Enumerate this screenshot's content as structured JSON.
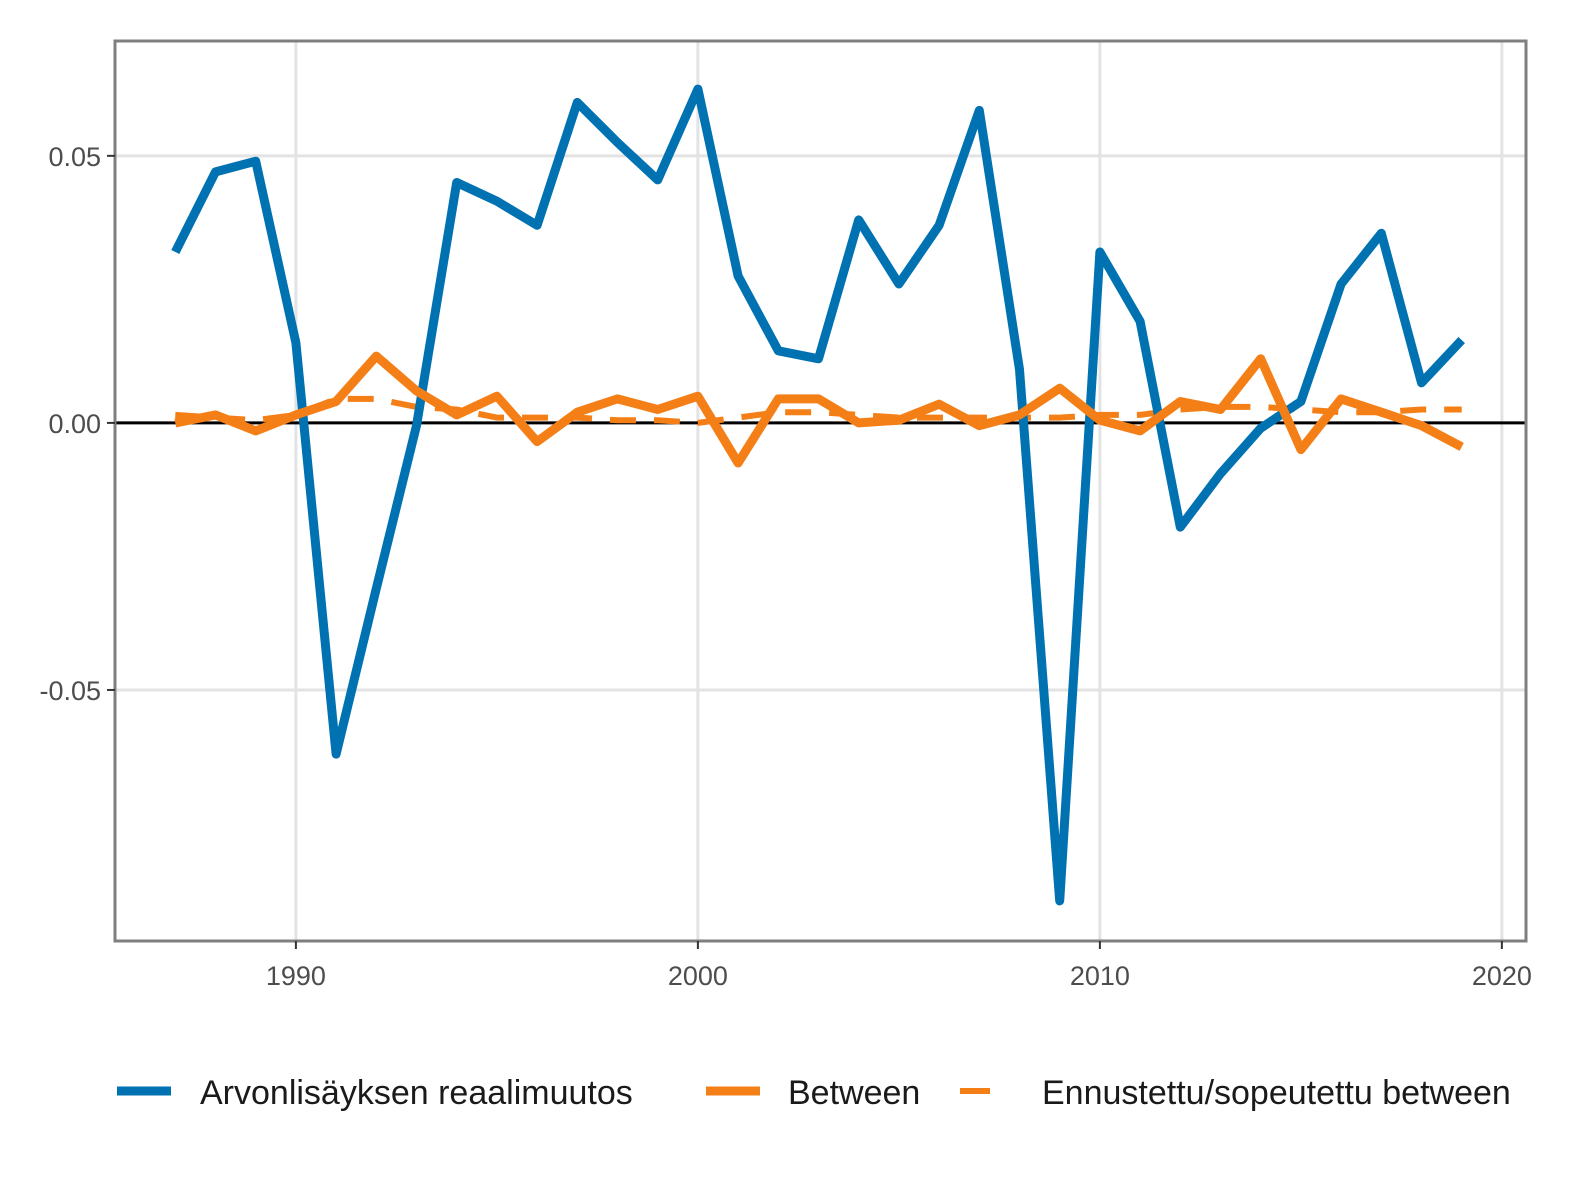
{
  "chart_data": {
    "type": "line",
    "title": "",
    "xlabel": "",
    "ylabel": "",
    "xlim": [
      1985.5,
      2020.6
    ],
    "ylim": [
      -0.097,
      0.0715
    ],
    "x_ticks": [
      1990,
      2000,
      2010,
      2020
    ],
    "x_tick_labels": [
      "1990",
      "2000",
      "2010",
      "2020"
    ],
    "y_ticks": [
      -0.05,
      0.0,
      0.05
    ],
    "y_tick_labels": [
      "-0.05",
      "0.00",
      "0.05"
    ],
    "grid": true,
    "reference_line_y": 0,
    "legend_position": "bottom",
    "colors": {
      "blue": "#0072B2",
      "orange": "#F57F17",
      "panel_border": "#7f7f7f",
      "grid": "#e3e3e3"
    },
    "series": [
      {
        "name": "Arvonlisäyksen reaalimuutos",
        "color": "#0072B2",
        "dash": "solid",
        "x": [
          1987,
          1988,
          1989,
          1990,
          1991,
          1992,
          1993,
          1994,
          1995,
          1996,
          1997,
          1998,
          1999,
          2000,
          2001,
          2002,
          2003,
          2004,
          2005,
          2006,
          2007,
          2008,
          2009,
          2010,
          2011,
          2012,
          2013,
          2014,
          2015,
          2016,
          2017,
          2018,
          2019
        ],
        "values": [
          0.032,
          0.047,
          0.049,
          0.015,
          -0.062,
          -0.031,
          -0.0005,
          0.045,
          0.0415,
          0.037,
          0.06,
          0.0525,
          0.0455,
          0.0625,
          0.0275,
          0.0135,
          0.012,
          0.038,
          0.026,
          0.037,
          0.0585,
          0.01,
          -0.0895,
          0.032,
          0.019,
          -0.0195,
          -0.0095,
          -0.001,
          0.004,
          0.026,
          0.0355,
          0.0075,
          0.0155
        ]
      },
      {
        "name": "Between",
        "color": "#F57F17",
        "dash": "solid",
        "x": [
          1987,
          1988,
          1989,
          1990,
          1991,
          1992,
          1993,
          1994,
          1995,
          1996,
          1997,
          1998,
          1999,
          2000,
          2001,
          2002,
          2003,
          2004,
          2005,
          2006,
          2007,
          2008,
          2009,
          2010,
          2011,
          2012,
          2013,
          2014,
          2015,
          2016,
          2017,
          2018,
          2019
        ],
        "values": [
          0.0,
          0.0015,
          -0.0015,
          0.0015,
          0.004,
          0.0125,
          0.006,
          0.0015,
          0.005,
          -0.0035,
          0.002,
          0.0045,
          0.0025,
          0.005,
          -0.0075,
          0.0045,
          0.0045,
          0.0,
          0.0005,
          0.0035,
          -0.0005,
          0.0015,
          0.0065,
          0.0005,
          -0.0015,
          0.004,
          0.0025,
          0.012,
          -0.005,
          0.0045,
          0.002,
          -0.0005,
          -0.0045
        ]
      },
      {
        "name": "Ennustettu/sopeutettu between",
        "color": "#F57F17",
        "dash": "dashed",
        "x": [
          1987,
          1988,
          1989,
          1990,
          1991,
          1992,
          1993,
          1994,
          1995,
          1996,
          1997,
          1998,
          1999,
          2000,
          2001,
          2002,
          2003,
          2004,
          2005,
          2006,
          2007,
          2008,
          2009,
          2010,
          2011,
          2012,
          2013,
          2014,
          2015,
          2016,
          2017,
          2018,
          2019
        ],
        "values": [
          0.0015,
          0.001,
          0.0005,
          0.0015,
          0.0045,
          0.0045,
          0.003,
          0.0025,
          0.001,
          0.001,
          0.001,
          0.0005,
          0.0005,
          0.0,
          0.001,
          0.002,
          0.002,
          0.0015,
          0.001,
          0.001,
          0.001,
          0.001,
          0.001,
          0.0015,
          0.0015,
          0.0025,
          0.003,
          0.003,
          0.0025,
          0.002,
          0.002,
          0.0025,
          0.0025
        ]
      }
    ]
  }
}
